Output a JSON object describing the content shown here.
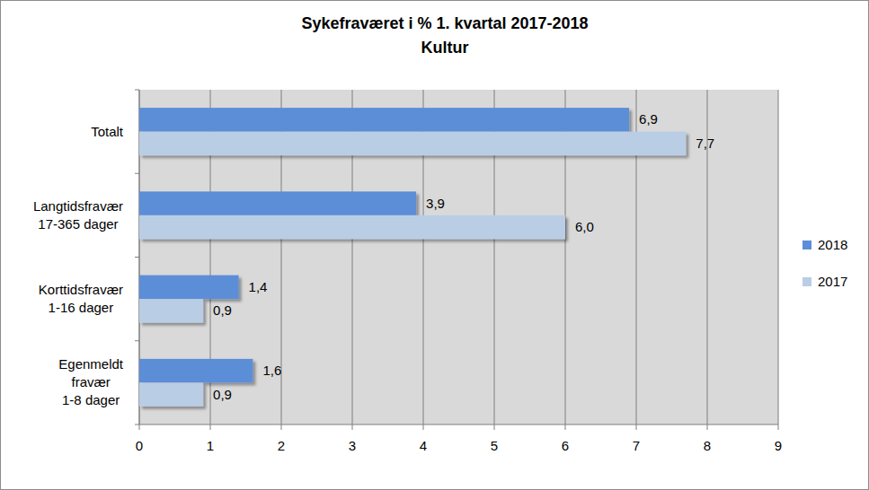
{
  "chart_data": {
    "type": "bar",
    "orientation": "horizontal",
    "title": "Sykefraværet i % 1. kvartal 2017-2018",
    "subtitle": "Kultur",
    "categories": [
      "Totalt",
      "Langtidsfravær\n17-365 dager",
      "Korttidsfravær\n1-16 dager",
      "Egenmeldt\nfravær\n1-8 dager"
    ],
    "series": [
      {
        "name": "2018",
        "color": "#5b8ed8",
        "values": [
          6.9,
          3.9,
          1.4,
          1.6
        ],
        "value_labels": [
          "6,9",
          "3,9",
          "1,4",
          "1,6"
        ]
      },
      {
        "name": "2017",
        "color": "#b9cde5",
        "values": [
          7.7,
          6.0,
          0.9,
          0.9
        ],
        "value_labels": [
          "7,7",
          "6,0",
          "0,9",
          "0,9"
        ]
      }
    ],
    "xlim": [
      0,
      9
    ],
    "xticks": [
      0,
      1,
      2,
      3,
      4,
      5,
      6,
      7,
      8,
      9
    ],
    "grid": true,
    "legend": "right",
    "data_labels": true
  }
}
